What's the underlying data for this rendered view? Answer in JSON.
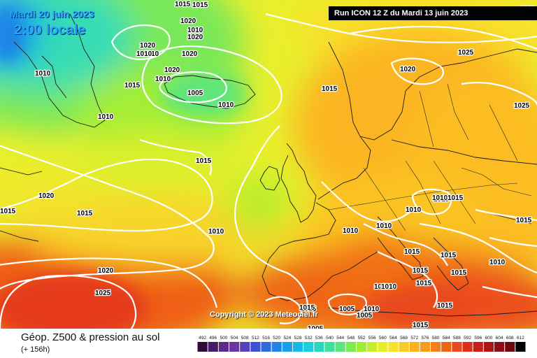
{
  "header": {
    "date_text": "Mardi 20 juin 2023",
    "time_text": "2:00 locale",
    "run_text": "Run ICON 12 Z du Mardi 13 juin 2023"
  },
  "copyright_text": "Copyright © 2023 Meteociel.fr",
  "legend": {
    "title": "Géop. Z500 & pression au sol",
    "lead_time": "(+ 156h)",
    "ticks": [
      "492",
      "496",
      "500",
      "504",
      "508",
      "512",
      "516",
      "520",
      "524",
      "528",
      "532",
      "536",
      "540",
      "544",
      "548",
      "552",
      "556",
      "560",
      "564",
      "568",
      "572",
      "576",
      "580",
      "584",
      "588",
      "592",
      "596",
      "600",
      "604",
      "608",
      "612"
    ],
    "colors": [
      "#2b0a3d",
      "#4b1a66",
      "#5c2a8a",
      "#6a34a5",
      "#5a3ec2",
      "#3f52d6",
      "#2e6ae0",
      "#1f84e6",
      "#1aa0ea",
      "#18b8e6",
      "#1ccfd8",
      "#2ad8bf",
      "#3ee0a0",
      "#5ce57c",
      "#7deb52",
      "#a2ee32",
      "#c8ee28",
      "#e7ef2a",
      "#f7e12a",
      "#fbca25",
      "#fbb21f",
      "#fa9a1a",
      "#f58018",
      "#ef6518",
      "#e84a1a",
      "#dc301c",
      "#c91d1d",
      "#b01419",
      "#8f0c14",
      "#6b070f",
      "#000000"
    ]
  },
  "isobar_labels": [
    "1015",
    "1020",
    "1010",
    "1020",
    "1020",
    "1010",
    "1010",
    "1020",
    "1010",
    "1020",
    "1010",
    "1005",
    "1010",
    "1010",
    "1015",
    "1020",
    "1025",
    "1025",
    "1015",
    "1020",
    "1020",
    "1015",
    "1015",
    "1015",
    "1010",
    "1010",
    "1010",
    "1010",
    "1015",
    "1015",
    "1005",
    "1010",
    "1015",
    "1015",
    "1015",
    "1015",
    "1015",
    "1015",
    "1015",
    "1010",
    "1015",
    "1015",
    "1010",
    "1010",
    "1005",
    "1020",
    "1025",
    "1015",
    "1005",
    "1010",
    "1015"
  ]
}
